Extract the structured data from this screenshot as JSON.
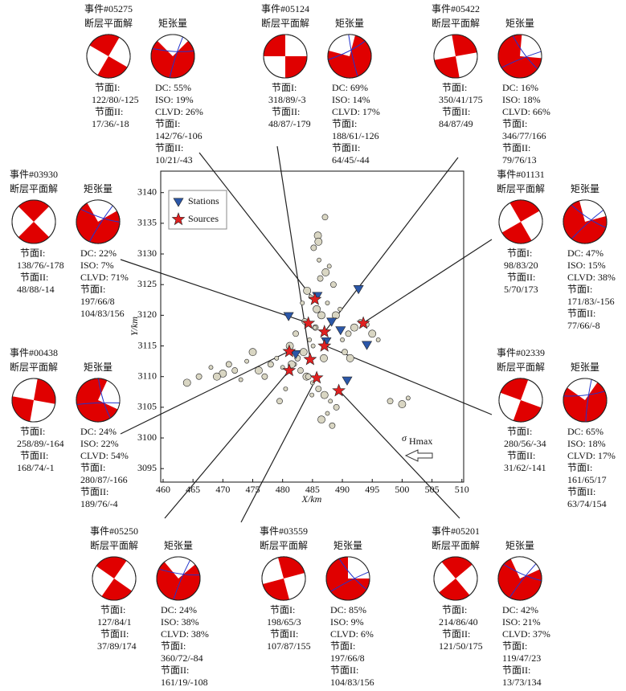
{
  "chart_data": {
    "type": "scatter",
    "xlabel": "X/km",
    "ylabel": "Y/km",
    "xlim": [
      459.6,
      510.3
    ],
    "ylim": [
      3092.8,
      3143.5
    ],
    "xticks": [
      460,
      465,
      470,
      475,
      480,
      485,
      490,
      495,
      500,
      505,
      510
    ],
    "yticks": [
      3095,
      3100,
      3105,
      3110,
      3115,
      3120,
      3125,
      3130,
      3135,
      3140
    ],
    "legend": "upper left",
    "series": [
      {
        "name": "Stations",
        "color": "#2b57a8",
        "marker": "triangle",
        "x": [
          481.0,
          485.8,
          492.7,
          488.2,
          489.7,
          494.1,
          487.3,
          490.8,
          482.2
        ],
        "values": [
          3119.9,
          3123.2,
          3124.3,
          3119.0,
          3117.6,
          3115.2,
          3115.8,
          3109.4,
          3113.7
        ]
      },
      {
        "name": "Sources",
        "color": "#e02020",
        "marker": "star",
        "x": [
          485.4,
          484.3,
          487.0,
          493.5,
          481.1,
          484.6,
          481.1,
          485.7,
          489.4,
          487.0
        ],
        "values": [
          3122.6,
          3118.7,
          3117.3,
          3118.7,
          3114.1,
          3112.8,
          3111.0,
          3109.8,
          3107.7,
          3115.0
        ]
      }
    ],
    "background_events": {
      "color": "#d9d6c3",
      "x": [
        482,
        483,
        484,
        485,
        486,
        487,
        488,
        489,
        483.5,
        484.5,
        485.5,
        486.5,
        487.5,
        482.5,
        481.5,
        480,
        478,
        476,
        474,
        472,
        470,
        468,
        466,
        464,
        479,
        477,
        475,
        473,
        471,
        469,
        490,
        491,
        492,
        493,
        494,
        495,
        496,
        498,
        500,
        501,
        488.5,
        487.2,
        486.1,
        485.2,
        484.1,
        483.3,
        482.2,
        481.2,
        480.5,
        479.5,
        486.5,
        487.5,
        488.3,
        485.7,
        484.7,
        483.7,
        486.9,
        485.1,
        484.3,
        488.9,
        489.6,
        490.4,
        491.3,
        487.8,
        486.3,
        485.9,
        484.9,
        487.1,
        486.0,
        485.4
      ],
      "y": [
        3112,
        3111,
        3110,
        3109,
        3108,
        3107,
        3106,
        3105,
        3114,
        3116,
        3118,
        3120,
        3122,
        3113,
        3112,
        3111.5,
        3112,
        3111,
        3112.5,
        3111,
        3110.5,
        3111.5,
        3110,
        3109,
        3113,
        3110,
        3114,
        3109.5,
        3112,
        3110,
        3116,
        3117,
        3118,
        3119,
        3118.5,
        3117,
        3116,
        3106,
        3105.5,
        3106.5,
        3125,
        3127,
        3129,
        3131,
        3124,
        3122,
        3117,
        3115,
        3108,
        3106,
        3103,
        3104,
        3102,
        3121,
        3123,
        3119,
        3113,
        3115,
        3110,
        3120,
        3121,
        3114,
        3113,
        3128,
        3126,
        3133,
        3107,
        3136,
        3132,
        3118
      ]
    },
    "annotation": {
      "symbol": "σ",
      "subscript": "Hmax"
    }
  },
  "panels": [
    {
      "id": "事件#05275",
      "fps_label": "断层平面解",
      "mt_label": "矩张量",
      "fps": [
        "节面I:",
        "122/80/-125",
        "节面II:",
        "17/36/-18"
      ],
      "mt": [
        "DC: 55%",
        "ISO: 19%",
        "CLVD: 26%",
        "节面I:",
        "142/76/-106",
        "节面II:",
        "10/21/-43"
      ]
    },
    {
      "id": "事件#05124",
      "fps_label": "断层平面解",
      "mt_label": "矩张量",
      "fps": [
        "节面I:",
        "318/89/-3",
        "节面II:",
        "48/87/-179"
      ],
      "mt": [
        "DC: 69%",
        "ISO: 14%",
        "CLVD: 17%",
        "节面I:",
        "188/61/-126",
        "节面II:",
        "64/45/-44"
      ]
    },
    {
      "id": "事件#05422",
      "fps_label": "断层平面解",
      "mt_label": "矩张量",
      "fps": [
        "节面I:",
        "350/41/175",
        "节面II:",
        "84/87/49"
      ],
      "mt": [
        "DC: 16%",
        "ISO: 18%",
        "CLVD: 66%",
        "节面I:",
        "346/77/166",
        "节面II:",
        "79/76/13"
      ]
    },
    {
      "id": "事件#03930",
      "fps_label": "断层平面解",
      "mt_label": "矩张量",
      "fps": [
        "节面I:",
        "138/76/-178",
        "节面II:",
        "48/88/-14"
      ],
      "mt": [
        "DC: 22%",
        "ISO: 7%",
        "CLVD: 71%",
        "节面I:",
        "197/66/8",
        "104/83/156"
      ]
    },
    {
      "id": "事件#01131",
      "fps_label": "断层平面解",
      "mt_label": "矩张量",
      "fps": [
        "节面I:",
        "98/83/20",
        "节面II:",
        "5/70/173"
      ],
      "mt": [
        "DC: 47%",
        "ISO: 15%",
        "CLVD: 38%",
        "节面I:",
        "171/83/-156",
        "节面II:",
        "77/66/-8"
      ]
    },
    {
      "id": "事件#00438",
      "fps_label": "断层平面解",
      "mt_label": "矩张量",
      "fps": [
        "节面I:",
        "258/89/-164",
        "节面II:",
        "168/74/-1"
      ],
      "mt": [
        "DC: 24%",
        "ISO: 22%",
        "CLVD: 54%",
        "节面I:",
        "280/87/-166",
        "节面II:",
        "189/76/-4"
      ]
    },
    {
      "id": "事件#02339",
      "fps_label": "断层平面解",
      "mt_label": "矩张量",
      "fps": [
        "节面I:",
        "280/56/-34",
        "节面II:",
        "31/62/-141"
      ],
      "mt": [
        "DC: 65%",
        "ISO: 18%",
        "CLVD: 17%",
        "节面I:",
        "161/65/17",
        "节面II:",
        "63/74/154"
      ]
    },
    {
      "id": "事件#05250",
      "fps_label": "断层平面解",
      "mt_label": "矩张量",
      "fps": [
        "节面I:",
        "127/84/1",
        "节面II:",
        "37/89/174"
      ],
      "mt": [
        "DC: 24%",
        "ISO: 38%",
        "CLVD: 38%",
        "节面I:",
        "360/72/-84",
        "节面II:",
        "161/19/-108"
      ]
    },
    {
      "id": "事件#03559",
      "fps_label": "断层平面解",
      "mt_label": "矩张量",
      "fps": [
        "节面I:",
        "198/65/3",
        "节面II:",
        "107/87/155"
      ],
      "mt": [
        "DC: 85%",
        "ISO: 9%",
        "CLVD: 6%",
        "节面I:",
        "197/66/8",
        "节面II:",
        "104/83/156"
      ]
    },
    {
      "id": "事件#05201",
      "fps_label": "断层平面解",
      "mt_label": "矩张量",
      "fps": [
        "节面I:",
        "214/86/40",
        "节面II:",
        "121/50/175"
      ],
      "mt": [
        "DC: 42%",
        "ISO: 21%",
        "CLVD: 37%",
        "节面I:",
        "119/47/23",
        "节面II:",
        "13/73/134"
      ]
    }
  ]
}
